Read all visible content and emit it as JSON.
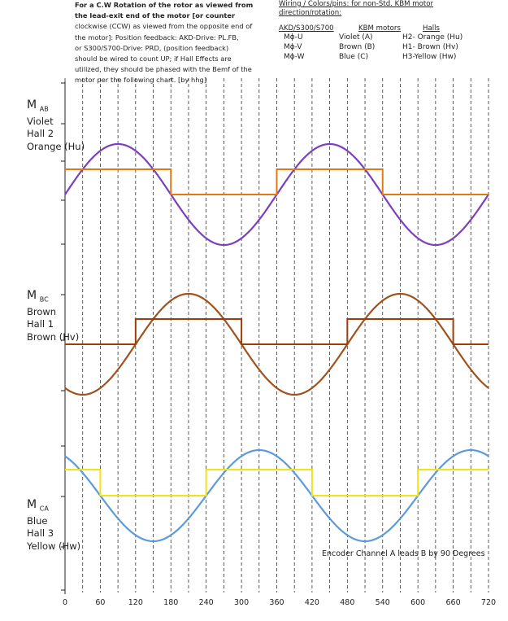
{
  "note_lines": [
    "For a C.W Rotation of the rotor as viewed from",
    "the lead-exit end of the motor  [or counter",
    "clockwise (CCW) as viewed from the opposite end of",
    "the motor]: Position feedback:  AKD-Drive: PL.FB,",
    "or S300/S700-Drive: PRD, (position feedback)",
    "should be wired to count UP;  if Hall Effects are",
    "utilized, they should be phased with the Bemf of the",
    "motor per the following chart. [by hhg]"
  ],
  "wiring": {
    "title_line1": "Wiring / Colors/pins:  for non-Std. KBM motor",
    "title_line2": "direction/rotation:",
    "header": [
      "AKD/S300/S700",
      "KBM motors",
      "Halls"
    ],
    "rows": [
      [
        "Mɸ-U",
        "Violet (A)",
        "H2- Orange (Hu)"
      ],
      [
        "Mɸ-V",
        "Brown (B)",
        "H1- Brown (Hv)"
      ],
      [
        "Mɸ-W",
        "Blue (C)",
        "H3-Yellow (Hw)"
      ]
    ]
  },
  "panels": [
    {
      "m": "M",
      "sub": "AB",
      "lines": [
        "Violet",
        "Hall 2",
        "Orange (Hu)"
      ]
    },
    {
      "m": "M",
      "sub": "BC",
      "lines": [
        "Brown",
        "Hall 1",
        "Brown (Hv)"
      ]
    },
    {
      "m": "M",
      "sub": "CA",
      "lines": [
        "Blue",
        "Hall 3",
        "Yellow (Hw)"
      ]
    }
  ],
  "annotation": "Encoder Channel A leads B by 90 Degrees",
  "chart_data": {
    "type": "line",
    "x_ticks": [
      0,
      60,
      120,
      180,
      240,
      300,
      360,
      420,
      480,
      540,
      600,
      660,
      720
    ],
    "xlim": [
      0,
      720
    ],
    "grid": "vertical dashed lines every 30 degrees",
    "series": [
      {
        "name": "M AB",
        "kind": "sine",
        "peak_at_deg": 90,
        "color": "#7B3FBF"
      },
      {
        "name": "Hall 2 (Hu)",
        "kind": "square",
        "high_ranges": [
          [
            0,
            180
          ],
          [
            360,
            540
          ]
        ],
        "color": "#E07A10"
      },
      {
        "name": "M BC",
        "kind": "sine",
        "peak_at_deg": 210,
        "color": "#A0521D"
      },
      {
        "name": "Hall 1 (Hv)",
        "kind": "square",
        "high_ranges": [
          [
            120,
            300
          ],
          [
            480,
            660
          ]
        ],
        "color": "#9A3E0C"
      },
      {
        "name": "M CA",
        "kind": "sine",
        "peak_at_deg": 330,
        "color": "#5B9BDB"
      },
      {
        "name": "Hall 3 (Hw)",
        "kind": "square",
        "high_ranges": [
          [
            0,
            60
          ],
          [
            240,
            420
          ],
          [
            600,
            720
          ]
        ],
        "color": "#F2E318"
      }
    ]
  }
}
